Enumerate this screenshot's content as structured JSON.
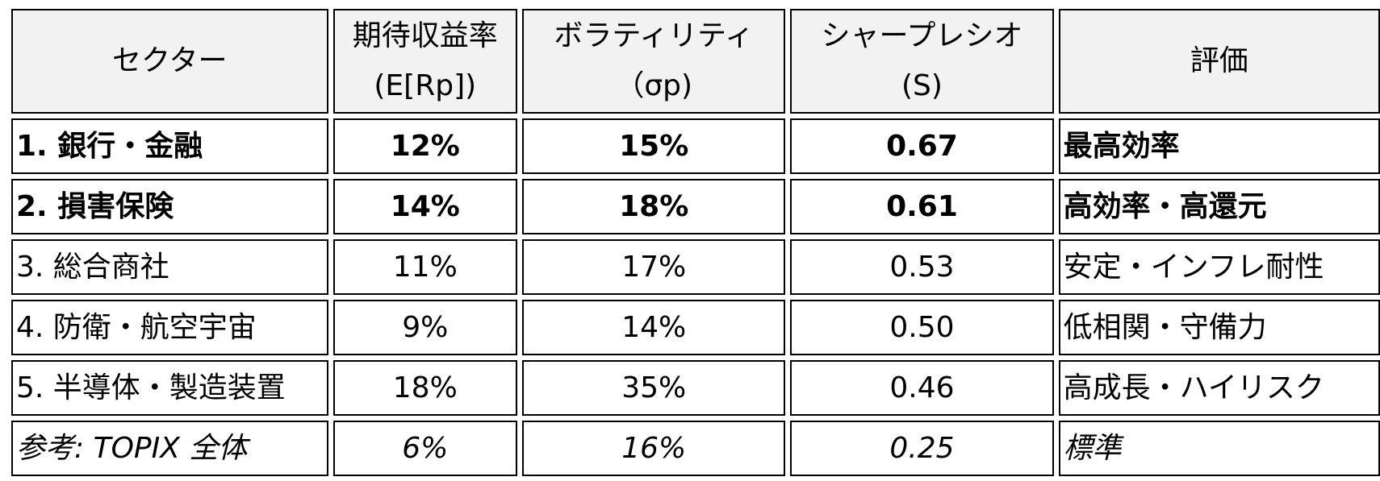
{
  "header": {
    "sector": "セクター",
    "expected_return": [
      "期待収益率",
      "(E[Rp])"
    ],
    "volatility": [
      "ボラティリティ",
      "（σp)"
    ],
    "sharpe": [
      "シャープレシオ",
      "(S)"
    ],
    "rating": "評価"
  },
  "rows": [
    {
      "sector": "1. 銀行・金融",
      "expected_return": "12%",
      "volatility": "15%",
      "sharpe": "0.67",
      "rating": "最高効率"
    },
    {
      "sector": "2. 損害保険",
      "expected_return": "14%",
      "volatility": "18%",
      "sharpe": "0.61",
      "rating": "高効率・高還元"
    },
    {
      "sector": "3. 総合商社",
      "expected_return": "11%",
      "volatility": "17%",
      "sharpe": "0.53",
      "rating": "安定・インフレ耐性"
    },
    {
      "sector": "4. 防衛・航空宇宙",
      "expected_return": "9%",
      "volatility": "14%",
      "sharpe": "0.50",
      "rating": "低相関・守備力"
    },
    {
      "sector": "5. 半導体・製造装置",
      "expected_return": "18%",
      "volatility": "35%",
      "sharpe": "0.46",
      "rating": "高成長・ハイリスク"
    }
  ],
  "reference": {
    "sector": "参考: TOPIX 全体",
    "expected_return": "6%",
    "volatility": "16%",
    "sharpe": "0.25",
    "rating": "標準"
  },
  "colors": {
    "header_bg": "#f2f2f2",
    "border": "#000000"
  }
}
